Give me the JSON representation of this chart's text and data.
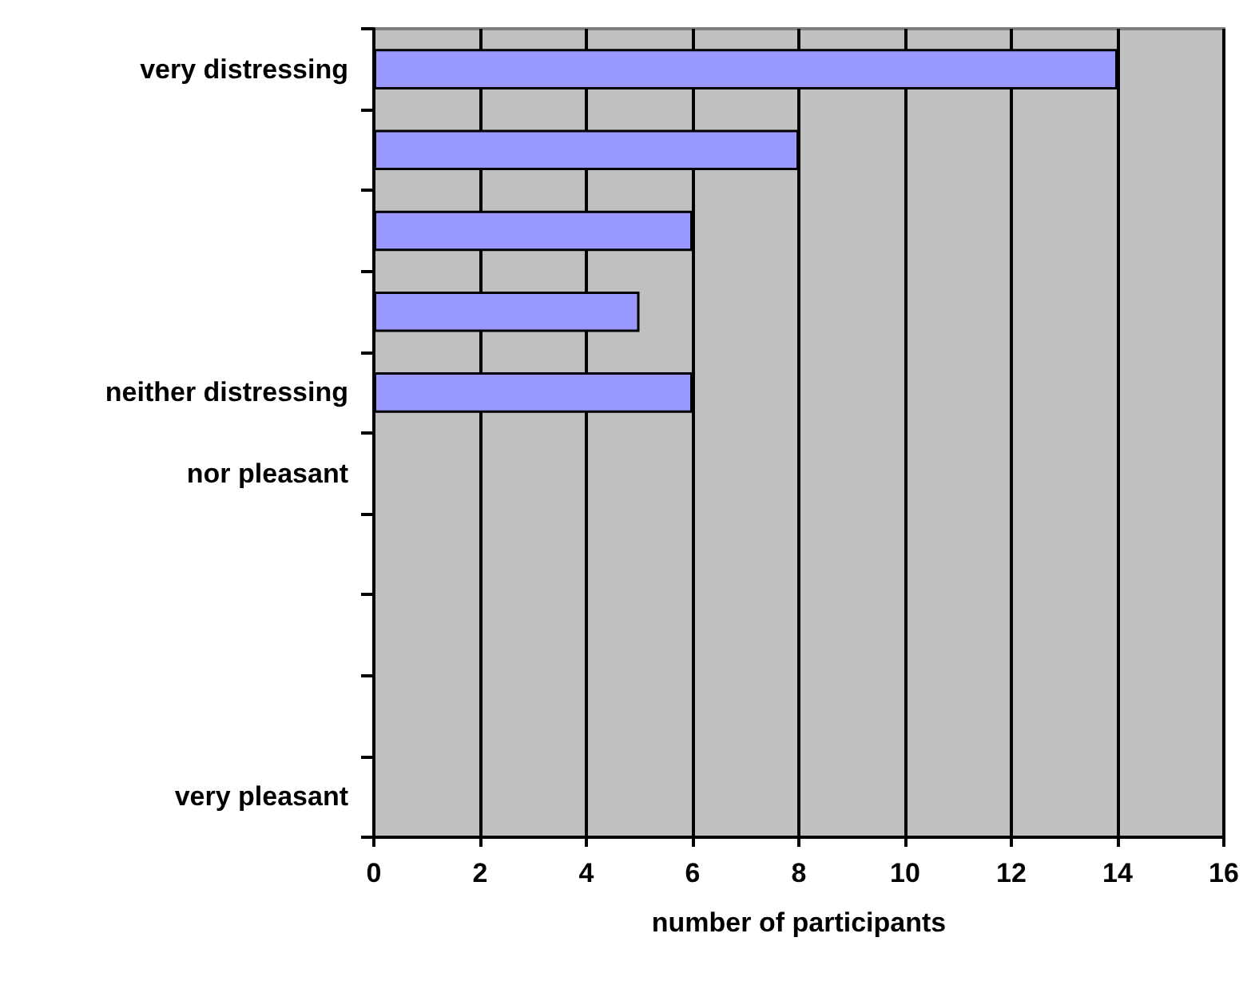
{
  "chart_data": {
    "type": "bar",
    "orientation": "horizontal",
    "xlabel": "number of participants",
    "categories": [
      "very distressing",
      null,
      null,
      null,
      "neither distressing",
      "nor pleasant",
      null,
      null,
      null,
      "very pleasant"
    ],
    "values": [
      14,
      8,
      6,
      5,
      6,
      0,
      0,
      0,
      0,
      0
    ],
    "color": "#9999ff",
    "xlim": [
      0,
      16
    ],
    "xticks": [
      0,
      2,
      4,
      6,
      8,
      10,
      12,
      14,
      16
    ],
    "grid": "x"
  }
}
